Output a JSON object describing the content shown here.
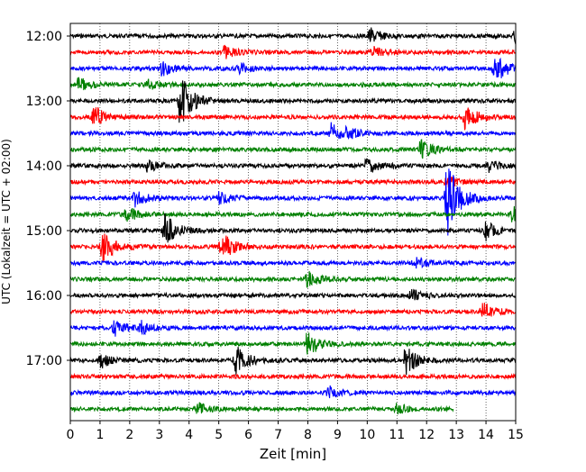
{
  "chart_data": {
    "type": "line",
    "title": "",
    "xlabel": "Zeit  [min]",
    "ylabel": "UTC (Lokalzeit = UTC + 02:00)",
    "xlim": [
      0,
      15
    ],
    "x_ticks": [
      "0",
      "1",
      "2",
      "3",
      "4",
      "5",
      "6",
      "7",
      "8",
      "9",
      "10",
      "11",
      "12",
      "13",
      "14",
      "15"
    ],
    "y_tick_labels": [
      "12:00",
      "13:00",
      "14:00",
      "15:00",
      "16:00",
      "17:00"
    ],
    "grid": "vertical dotted",
    "trace_interval_min": 15,
    "trace_colors": [
      "#000000",
      "#ff0000",
      "#0000ff",
      "#008000"
    ],
    "traces": [
      {
        "row": 0,
        "start": "12:00",
        "color": "#000000",
        "events": [
          {
            "t": 10.1,
            "amp": 0.45
          },
          {
            "t": 15.0,
            "amp": 0.4
          }
        ]
      },
      {
        "row": 1,
        "start": "12:15",
        "color": "#ff0000",
        "events": [
          {
            "t": 5.2,
            "amp": 0.35
          },
          {
            "t": 10.2,
            "amp": 0.3
          }
        ]
      },
      {
        "row": 2,
        "start": "12:30",
        "color": "#0000ff",
        "events": [
          {
            "t": 3.1,
            "amp": 0.45
          },
          {
            "t": 5.7,
            "amp": 0.3
          },
          {
            "t": 14.3,
            "amp": 0.9
          }
        ]
      },
      {
        "row": 3,
        "start": "12:45",
        "color": "#008000",
        "events": [
          {
            "t": 0.3,
            "amp": 0.45
          },
          {
            "t": 2.6,
            "amp": 0.3
          }
        ]
      },
      {
        "row": 4,
        "start": "13:00",
        "color": "#000000",
        "events": [
          {
            "t": 3.7,
            "amp": 1.7
          }
        ]
      },
      {
        "row": 5,
        "start": "13:15",
        "color": "#ff0000",
        "events": [
          {
            "t": 0.8,
            "amp": 0.7
          },
          {
            "t": 13.3,
            "amp": 0.8
          }
        ]
      },
      {
        "row": 6,
        "start": "13:30",
        "color": "#0000ff",
        "events": [
          {
            "t": 8.8,
            "amp": 0.6
          },
          {
            "t": 9.3,
            "amp": 0.3
          }
        ]
      },
      {
        "row": 7,
        "start": "13:45",
        "color": "#008000",
        "events": [
          {
            "t": 11.8,
            "amp": 0.6
          }
        ]
      },
      {
        "row": 8,
        "start": "14:00",
        "color": "#000000",
        "events": [
          {
            "t": 2.6,
            "amp": 0.35
          },
          {
            "t": 10.0,
            "amp": 0.55
          },
          {
            "t": 14.1,
            "amp": 0.35
          }
        ]
      },
      {
        "row": 9,
        "start": "14:15",
        "color": "#ff0000",
        "events": [
          {
            "t": 12.7,
            "amp": 0.3
          }
        ]
      },
      {
        "row": 10,
        "start": "14:30",
        "color": "#0000ff",
        "events": [
          {
            "t": 2.2,
            "amp": 0.5
          },
          {
            "t": 5.0,
            "amp": 0.35
          },
          {
            "t": 12.7,
            "amp": 2.4
          }
        ]
      },
      {
        "row": 11,
        "start": "14:45",
        "color": "#008000",
        "events": [
          {
            "t": 1.9,
            "amp": 0.45
          },
          {
            "t": 14.9,
            "amp": 0.5
          }
        ]
      },
      {
        "row": 12,
        "start": "15:00",
        "color": "#000000",
        "events": [
          {
            "t": 3.2,
            "amp": 1.1
          },
          {
            "t": 14.0,
            "amp": 0.55
          }
        ]
      },
      {
        "row": 13,
        "start": "15:15",
        "color": "#ff0000",
        "events": [
          {
            "t": 1.1,
            "amp": 0.95
          },
          {
            "t": 5.1,
            "amp": 1.0
          }
        ]
      },
      {
        "row": 14,
        "start": "15:30",
        "color": "#0000ff",
        "events": [
          {
            "t": 11.6,
            "amp": 0.35
          }
        ]
      },
      {
        "row": 15,
        "start": "15:45",
        "color": "#008000",
        "events": [
          {
            "t": 8.0,
            "amp": 0.5
          }
        ]
      },
      {
        "row": 16,
        "start": "16:00",
        "color": "#000000",
        "events": [
          {
            "t": 11.5,
            "amp": 0.35
          }
        ]
      },
      {
        "row": 17,
        "start": "16:15",
        "color": "#ff0000",
        "events": [
          {
            "t": 13.9,
            "amp": 0.55
          }
        ]
      },
      {
        "row": 18,
        "start": "16:30",
        "color": "#0000ff",
        "events": [
          {
            "t": 1.5,
            "amp": 0.45
          },
          {
            "t": 2.4,
            "amp": 0.35
          }
        ]
      },
      {
        "row": 19,
        "start": "16:45",
        "color": "#008000",
        "events": [
          {
            "t": 8.0,
            "amp": 0.85
          }
        ]
      },
      {
        "row": 20,
        "start": "17:00",
        "color": "#000000",
        "events": [
          {
            "t": 1.0,
            "amp": 0.5
          },
          {
            "t": 5.6,
            "amp": 0.9
          },
          {
            "t": 11.3,
            "amp": 0.85
          }
        ]
      },
      {
        "row": 21,
        "start": "17:15",
        "color": "#ff0000",
        "events": []
      },
      {
        "row": 22,
        "start": "17:30",
        "color": "#0000ff",
        "events": [
          {
            "t": 8.7,
            "amp": 0.4
          }
        ]
      },
      {
        "row": 23,
        "start": "17:45",
        "color": "#008000",
        "events": [
          {
            "t": 4.3,
            "amp": 0.35
          },
          {
            "t": 11.0,
            "amp": 0.3
          }
        ],
        "end_min": 12.9
      }
    ]
  }
}
